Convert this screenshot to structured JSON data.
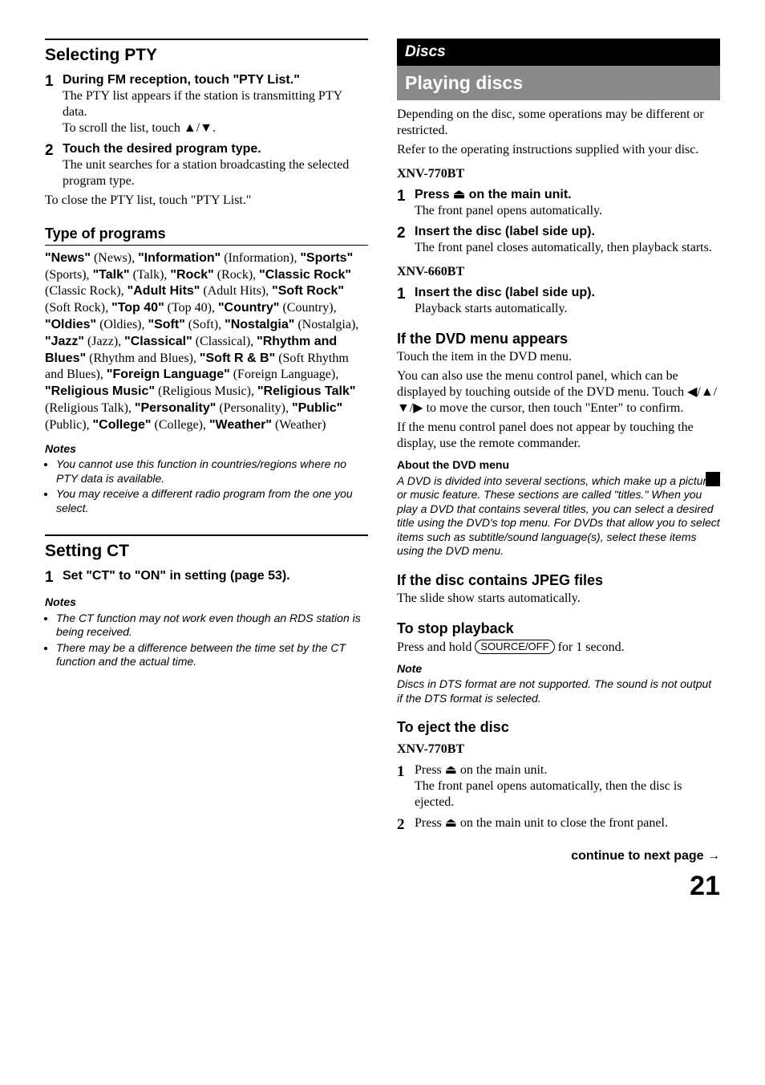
{
  "left": {
    "selecting_pty": {
      "title": "Selecting PTY",
      "step1_num": "1",
      "step1_head": "During FM reception, touch \"PTY List.\"",
      "step1_l1": "The PTY list appears if the station is transmitting PTY data.",
      "step1_l2_a": "To scroll the list, touch ",
      "step1_l2_arrows": "▲/▼",
      "step1_l2_b": ".",
      "step2_num": "2",
      "step2_head": "Touch the desired program type.",
      "step2_l1": "The unit searches for a station broadcasting the selected program type.",
      "close": "To close the PTY list, touch \"PTY List.\""
    },
    "type_programs": {
      "title": "Type of programs",
      "list_html": "<b>\"News\"</b> (News), <b>\"Information\"</b> (Information), <b>\"Sports\"</b> (Sports), <b>\"Talk\"</b> (Talk), <b>\"Rock\"</b> (Rock), <b>\"Classic Rock\"</b> (Classic Rock), <b>\"Adult Hits\"</b> (Adult Hits), <b>\"Soft Rock\"</b> (Soft Rock), <b>\"Top 40\"</b> (Top 40), <b>\"Country\"</b> (Country), <b>\"Oldies\"</b> (Oldies), <b>\"Soft\"</b> (Soft), <b>\"Nostalgia\"</b> (Nostalgia), <b>\"Jazz\"</b> (Jazz), <b>\"Classical\"</b> (Classical), <b>\"Rhythm and Blues\"</b> (Rhythm and Blues), <b>\"Soft R & B\"</b> (Soft Rhythm and Blues), <b>\"Foreign Language\"</b> (Foreign Language), <b>\"Religious Music\"</b> (Religious Music), <b>\"Religious Talk\"</b> (Religious Talk), <b>\"Personality\"</b> (Personality), <b>\"Public\"</b> (Public), <b>\"College\"</b> (College), <b>\"Weather\"</b> (Weather)",
      "notes_hd": "Notes",
      "note1": "You cannot use this function in countries/regions where no PTY data is available.",
      "note2": "You may receive a different radio program from the one you select."
    },
    "setting_ct": {
      "title": "Setting CT",
      "step1_num": "1",
      "step1_head": "Set \"CT\" to \"ON\" in setting (page 53).",
      "notes_hd": "Notes",
      "note1": "The CT function may not work even though an RDS station is being received.",
      "note2": "There may be a difference between the time set by the CT function and the actual time."
    }
  },
  "right": {
    "discs_bar": "Discs",
    "playing_bar": "Playing discs",
    "intro1": "Depending on the disc, some operations may be different or restricted.",
    "intro2": "Refer to the operating instructions supplied with your disc.",
    "m770": "XNV-770BT",
    "m770_s1_num": "1",
    "m770_s1_head_a": "Press ",
    "eject_icon": "⏏",
    "m770_s1_head_b": " on the main unit.",
    "m770_s1_l1": "The front panel opens automatically.",
    "m770_s2_num": "2",
    "m770_s2_head": "Insert the disc (label side up).",
    "m770_s2_l1": "The front panel closes automatically, then playback starts.",
    "m660": "XNV-660BT",
    "m660_s1_num": "1",
    "m660_s1_head": "Insert the disc (label side up).",
    "m660_s1_l1": "Playback starts automatically.",
    "dvd_menu": {
      "title": "If the DVD menu appears",
      "l1": "Touch the item in the DVD menu.",
      "l2": "You can also use the menu control panel, which can be displayed by touching outside of the DVD menu. Touch ◀/▲/▼/▶ to move the cursor, then touch \"Enter\" to confirm.",
      "l3": "If the menu control panel does not appear by touching the display, use the remote commander.",
      "about_hd": "About the DVD menu",
      "about_body": "A DVD is divided into several sections, which make up a picture or music feature. These sections are called \"titles.\" When you play a DVD that contains several titles, you can select a desired title using the DVD's top menu. For DVDs that allow you to select items such as subtitle/sound language(s), select these items using the DVD menu."
    },
    "jpeg": {
      "title": "If the disc contains JPEG files",
      "l1": "The slide show starts automatically."
    },
    "stop": {
      "title": "To stop playback",
      "l1_a": "Press and hold ",
      "btn": "SOURCE/OFF",
      "l1_b": " for 1 second.",
      "note_hd": "Note",
      "note": "Discs in DTS format are not supported. The sound is not output if the DTS format is selected."
    },
    "eject": {
      "title": "To eject the disc",
      "model": "XNV-770BT",
      "s1_num": "1",
      "s1_a": "Press ",
      "s1_b": " on the main unit.",
      "s1_l1": "The front panel opens automatically, then the disc is ejected.",
      "s2_num": "2",
      "s2_a": "Press ",
      "s2_b": " on the main unit to close the front panel."
    },
    "cont": "continue to next page →",
    "page": "21"
  }
}
